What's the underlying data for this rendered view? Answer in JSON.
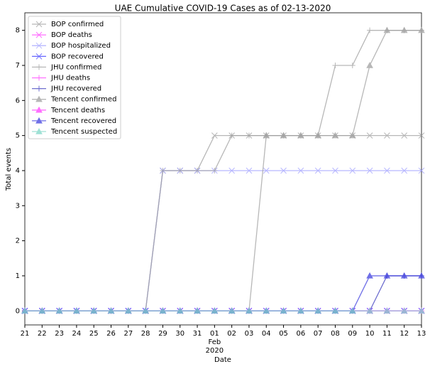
{
  "chart_data": {
    "type": "line",
    "title": "UAE Cumulative COVID-19 Cases as of 02-13-2020",
    "xlabel": "Date",
    "ylabel": "Total events",
    "categories": [
      "21",
      "22",
      "23",
      "24",
      "25",
      "26",
      "27",
      "28",
      "29",
      "30",
      "31",
      "01",
      "02",
      "03",
      "04",
      "05",
      "06",
      "07",
      "08",
      "09",
      "10",
      "11",
      "12",
      "13"
    ],
    "month_label": "Feb",
    "year_label": "2020",
    "ylim": [
      -0.4,
      8.5
    ],
    "yticks": [
      0,
      1,
      2,
      3,
      4,
      5,
      6,
      7,
      8
    ],
    "legend": "upper left",
    "series": [
      {
        "name": "BOP confirmed",
        "color": "#a0a0a0",
        "marker": "x",
        "values": [
          0,
          0,
          0,
          0,
          0,
          0,
          0,
          0,
          4,
          4,
          4,
          5,
          5,
          5,
          5,
          5,
          5,
          5,
          5,
          5,
          5,
          5,
          5,
          5
        ]
      },
      {
        "name": "BOP deaths",
        "color": "#ff40ff",
        "marker": "x",
        "values": [
          0,
          0,
          0,
          0,
          0,
          0,
          0,
          0,
          0,
          0,
          0,
          0,
          0,
          0,
          0,
          0,
          0,
          0,
          0,
          0,
          0,
          0,
          0,
          0
        ]
      },
      {
        "name": "BOP hospitalized",
        "color": "#a0a0ff",
        "marker": "x",
        "values": [
          0,
          0,
          0,
          0,
          0,
          0,
          0,
          0,
          4,
          4,
          4,
          4,
          4,
          4,
          4,
          4,
          4,
          4,
          4,
          4,
          4,
          4,
          4,
          4
        ]
      },
      {
        "name": "BOP recovered",
        "color": "#4040ff",
        "marker": "x",
        "values": [
          0,
          0,
          0,
          0,
          0,
          0,
          0,
          0,
          0,
          0,
          0,
          0,
          0,
          0,
          0,
          0,
          0,
          0,
          0,
          0,
          0,
          0,
          0,
          0
        ]
      },
      {
        "name": "JHU confirmed",
        "color": "#a0a0a0",
        "marker": "+",
        "values": [
          0,
          0,
          0,
          0,
          0,
          0,
          0,
          0,
          4,
          4,
          4,
          4,
          5,
          5,
          5,
          5,
          5,
          5,
          7,
          7,
          8,
          8,
          8,
          8
        ]
      },
      {
        "name": "JHU deaths",
        "color": "#ff40ff",
        "marker": "+",
        "values": [
          0,
          0,
          0,
          0,
          0,
          0,
          0,
          0,
          0,
          0,
          0,
          0,
          0,
          0,
          0,
          0,
          0,
          0,
          0,
          0,
          0,
          0,
          0,
          0
        ]
      },
      {
        "name": "JHU recovered",
        "color": "#4040c0",
        "marker": "+",
        "values": [
          0,
          0,
          0,
          0,
          0,
          0,
          0,
          0,
          0,
          0,
          0,
          0,
          0,
          0,
          0,
          0,
          0,
          0,
          0,
          0,
          0,
          1,
          1,
          1
        ]
      },
      {
        "name": "Tencent confirmed",
        "color": "#a0a0a0",
        "marker": "^",
        "values": [
          0,
          0,
          0,
          0,
          0,
          0,
          0,
          0,
          0,
          0,
          0,
          0,
          0,
          0,
          5,
          5,
          5,
          5,
          5,
          5,
          7,
          8,
          8,
          8
        ]
      },
      {
        "name": "Tencent deaths",
        "color": "#ff40ff",
        "marker": "^",
        "values": [
          0,
          0,
          0,
          0,
          0,
          0,
          0,
          0,
          0,
          0,
          0,
          0,
          0,
          0,
          0,
          0,
          0,
          0,
          0,
          0,
          0,
          0,
          0,
          0
        ]
      },
      {
        "name": "Tencent recovered",
        "color": "#4040e0",
        "marker": "^",
        "values": [
          0,
          0,
          0,
          0,
          0,
          0,
          0,
          0,
          0,
          0,
          0,
          0,
          0,
          0,
          0,
          0,
          0,
          0,
          0,
          0,
          1,
          1,
          1,
          1
        ]
      },
      {
        "name": "Tencent suspected",
        "color": "#80d8c8",
        "marker": "^",
        "values": [
          0,
          0,
          0,
          0,
          0,
          0,
          0,
          0,
          0,
          0,
          0,
          0,
          0,
          0,
          0,
          0,
          0,
          0,
          0,
          0,
          0,
          0,
          0,
          0
        ]
      }
    ]
  }
}
